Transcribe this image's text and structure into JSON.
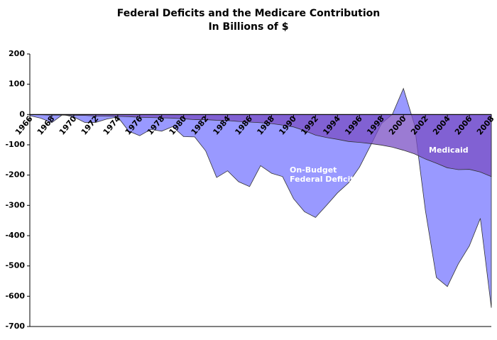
{
  "chart_data": {
    "type": "area",
    "title": "Federal Deficits and the Medicare Contribution",
    "subtitle": "In Billions of $",
    "x": [
      1966,
      1967,
      1968,
      1969,
      1970,
      1971,
      1972,
      1973,
      1974,
      1975,
      1976,
      1977,
      1978,
      1979,
      1980,
      1981,
      1982,
      1983,
      1984,
      1985,
      1986,
      1987,
      1988,
      1989,
      1990,
      1991,
      1992,
      1993,
      1994,
      1995,
      1996,
      1997,
      1998,
      1999,
      2000,
      2001,
      2002,
      2003,
      2004,
      2005,
      2006,
      2007,
      2008
    ],
    "series": [
      {
        "name": "On-Budget Federal Deficits",
        "color": "#9999ff",
        "values": [
          -4,
          -12,
          -27,
          0,
          -8,
          -26,
          -26,
          -15,
          -8,
          -55,
          -70,
          -49,
          -55,
          -40,
          -73,
          -74,
          -120,
          -208,
          -186,
          -222,
          -238,
          -169,
          -194,
          -205,
          -278,
          -321,
          -340,
          -300,
          -259,
          -226,
          -174,
          -103,
          -30,
          1,
          86,
          -33,
          -317,
          -538,
          -568,
          -493,
          -434,
          -343,
          -638
        ]
      },
      {
        "name": "Medicaid",
        "color": "#7a4fc4",
        "values": [
          -1,
          -1,
          -2,
          -2,
          -3,
          -3,
          -5,
          -5,
          -6,
          -7,
          -9,
          -10,
          -11,
          -12,
          -14,
          -17,
          -17,
          -19,
          -20,
          -23,
          -25,
          -27,
          -30,
          -35,
          -41,
          -53,
          -68,
          -76,
          -82,
          -89,
          -92,
          -96,
          -101,
          -108,
          -118,
          -130,
          -147,
          -161,
          -176,
          -182,
          -181,
          -190,
          -205
        ]
      }
    ],
    "xlim": [
      1966,
      2008
    ],
    "xticks": [
      1966,
      1968,
      1970,
      1972,
      1974,
      1976,
      1978,
      1980,
      1982,
      1984,
      1986,
      1988,
      1990,
      1992,
      1994,
      1996,
      1998,
      2000,
      2002,
      2004,
      2006,
      2008
    ],
    "ylim": [
      -700,
      200
    ],
    "yticks": [
      -700,
      -600,
      -500,
      -400,
      -300,
      -200,
      -100,
      0,
      100,
      200
    ]
  }
}
